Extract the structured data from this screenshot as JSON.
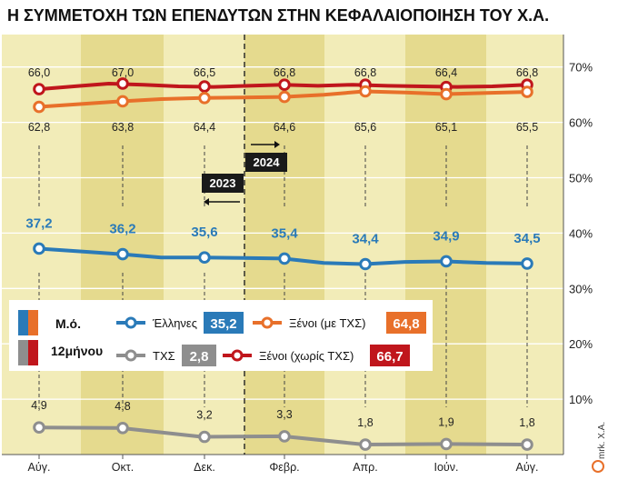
{
  "title": "Η ΣΥΜΜΕΤΟΧΗ ΤΩΝ ΕΠΕΝΔΥΤΩΝ ΣΤΗΝ ΚΕΦΑΛΑΙΟΠΟΙΗΣΗ ΤΟΥ Χ.Α.",
  "credit": "mrk. X.A.",
  "colors": {
    "background_band_light": "#f2ecb8",
    "background_band_dark": "#e5da8e",
    "blue": "#2a7ab8",
    "orange": "#e8702a",
    "red": "#c0161c",
    "gray": "#8e8e8e"
  },
  "chart_data": {
    "type": "line",
    "categories": [
      "Αύγ.",
      "Οκτ.",
      "Δεκ.",
      "Φεβρ.",
      "Απρ.",
      "Ιούν.",
      "Αύγ."
    ],
    "y_ticks": [
      "10%",
      "20%",
      "30%",
      "40%",
      "50%",
      "60%",
      "70%"
    ],
    "ylim": [
      0,
      75
    ],
    "grid": true,
    "year_markers": [
      {
        "label": "2023",
        "arrow": "left"
      },
      {
        "label": "2024",
        "arrow": "right"
      }
    ],
    "series": [
      {
        "name": "Ξένοι (χωρίς ΤΧΣ)",
        "color": "#c0161c",
        "points": [
          66.0,
          67.0,
          66.5,
          66.8,
          66.8,
          66.4,
          66.8
        ],
        "labels": [
          "66,0",
          "67,0",
          "66,5",
          "66,8",
          "66,8",
          "66,4",
          "66,8"
        ],
        "line": [
          66.0,
          66.5,
          67.0,
          66.8,
          66.5,
          66.4,
          66.6,
          66.8,
          66.6,
          66.8,
          66.6,
          66.5,
          66.4,
          66.5,
          66.8
        ],
        "average": "66,7"
      },
      {
        "name": "Ξένοι (με ΤΧΣ)",
        "color": "#e8702a",
        "points": [
          62.8,
          63.8,
          64.4,
          64.6,
          65.6,
          65.1,
          65.5
        ],
        "labels": [
          "62,8",
          "63,8",
          "64,4",
          "64,6",
          "65,6",
          "65,1",
          "65,5"
        ],
        "line": [
          62.8,
          63.3,
          63.8,
          64.2,
          64.4,
          64.5,
          64.6,
          65.0,
          65.6,
          65.4,
          65.1,
          65.3,
          65.5
        ],
        "average": "64,8"
      },
      {
        "name": "Έλληνες",
        "color": "#2a7ab8",
        "points": [
          37.2,
          36.2,
          35.6,
          35.4,
          34.4,
          34.9,
          34.5
        ],
        "labels": [
          "37,2",
          "36,2",
          "35,6",
          "35,4",
          "34,4",
          "34,9",
          "34,5"
        ],
        "line": [
          37.2,
          36.7,
          36.2,
          35.6,
          35.6,
          35.5,
          35.4,
          34.6,
          34.4,
          34.8,
          34.9,
          34.6,
          34.5
        ],
        "average": "35,2"
      },
      {
        "name": "ΤΧΣ",
        "color": "#8e8e8e",
        "points": [
          4.9,
          4.8,
          3.2,
          3.3,
          1.8,
          1.9,
          1.8
        ],
        "labels": [
          "4,9",
          "4,8",
          "3,2",
          "3,3",
          "1,8",
          "1,9",
          "1,8"
        ],
        "line": [
          4.9,
          4.8,
          3.2,
          3.3,
          1.8,
          1.9,
          1.8
        ],
        "average": "2,8"
      }
    ],
    "legend": {
      "position": "middle-left",
      "avg_label": "Μ.ό.",
      "months_label": "12μήνου"
    }
  }
}
